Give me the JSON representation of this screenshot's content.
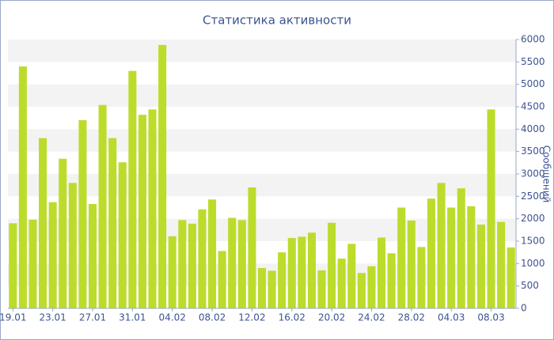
{
  "chart_data": {
    "type": "bar",
    "title": "Статистика активности",
    "y_label": "Сообщений",
    "categories": [
      "19.01",
      null,
      null,
      null,
      "23.01",
      null,
      null,
      null,
      "27.01",
      null,
      null,
      null,
      "31.01",
      null,
      null,
      null,
      "04.02",
      null,
      null,
      null,
      "08.02",
      null,
      null,
      null,
      "12.02",
      null,
      null,
      null,
      "16.02",
      null,
      null,
      null,
      "20.02",
      null,
      null,
      null,
      "24.02",
      null,
      null,
      null,
      "28.02",
      null,
      null,
      null,
      "04.03",
      null,
      null,
      null,
      "08.03",
      null,
      null
    ],
    "values": [
      1900,
      5400,
      1980,
      3800,
      2370,
      3340,
      2800,
      4200,
      2330,
      4540,
      3800,
      3260,
      5300,
      4320,
      4440,
      5880,
      1610,
      1970,
      1890,
      2210,
      2430,
      1280,
      2020,
      1970,
      2700,
      900,
      840,
      1250,
      1570,
      1600,
      1690,
      850,
      1910,
      1110,
      1440,
      790,
      940,
      1580,
      1230,
      2250,
      1960,
      1370,
      2450,
      2800,
      2250,
      2680,
      2280,
      1870,
      4440,
      1930,
      1360
    ],
    "color": "#bcdc2c",
    "ylim": [
      0,
      6000
    ],
    "yticks": [
      0,
      500,
      1000,
      1500,
      2000,
      2500,
      3000,
      3500,
      4000,
      4500,
      5000,
      5500,
      6000
    ],
    "grid": true
  }
}
